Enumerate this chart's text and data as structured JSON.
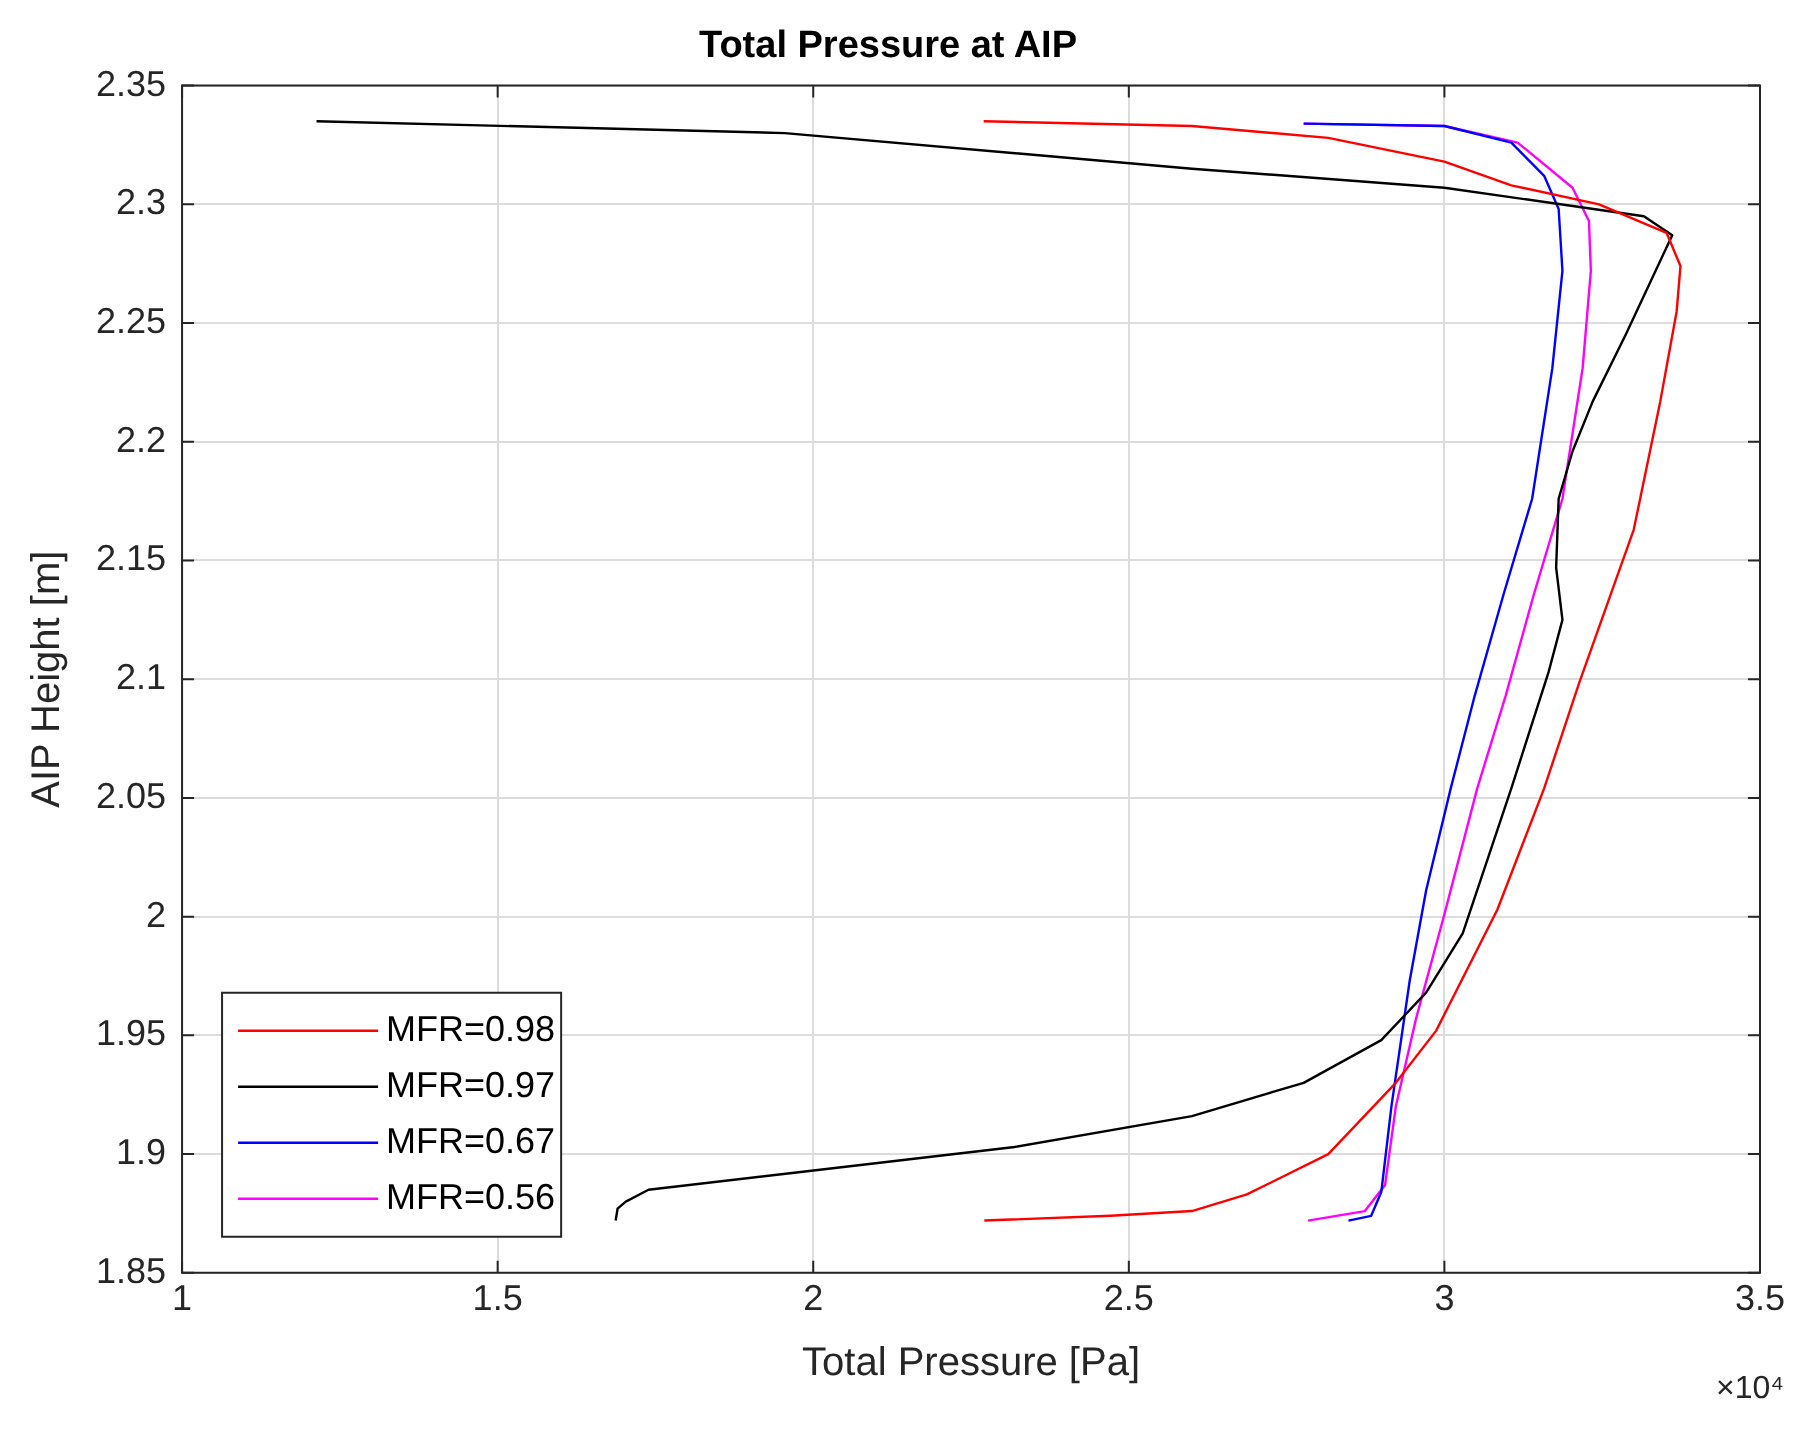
{
  "chart_data": {
    "type": "line",
    "title": "Total Pressure at AIP",
    "xlabel": "Total Pressure [Pa]",
    "ylabel": "AIP Height [m]",
    "annotations": [
      "×10⁴"
    ],
    "xlim": [
      1,
      3.5
    ],
    "xticks": [
      1,
      1.5,
      2,
      2.5,
      3,
      3.5
    ],
    "ylim": [
      1.85,
      2.35
    ],
    "yticks": [
      1.85,
      1.9,
      1.95,
      2,
      2.05,
      2.1,
      2.15,
      2.2,
      2.25,
      2.3,
      2.35
    ],
    "grid": true,
    "legend": "bottom left",
    "line_style": "solid",
    "marker": "none",
    "series": [
      {
        "name": "MFR=0.98",
        "color": "#ff0000",
        "x": [
          2.27,
          2.6,
          2.816,
          3.0,
          3.106,
          3.245,
          3.352,
          3.374,
          3.368,
          3.342,
          3.3,
          3.213,
          3.158,
          3.084,
          2.987,
          2.923,
          2.816,
          2.687,
          2.6,
          2.471,
          2.271
        ],
        "values": [
          2.335,
          2.333,
          2.328,
          2.318,
          2.308,
          2.3,
          2.288,
          2.274,
          2.255,
          2.217,
          2.163,
          2.098,
          2.054,
          2.003,
          1.952,
          1.93,
          1.9,
          1.883,
          1.876,
          1.874,
          1.872
        ]
      },
      {
        "name": "MFR=0.97",
        "color": "#000000",
        "x": [
          1.213,
          1.955,
          2.6,
          3.0,
          3.316,
          3.361,
          3.287,
          3.235,
          3.203,
          3.181,
          3.177,
          3.187,
          3.165,
          3.106,
          3.029,
          2.971,
          2.9,
          2.777,
          2.6,
          2.319,
          1.997,
          1.739,
          1.703,
          1.69,
          1.687
        ],
        "values": [
          2.335,
          2.33,
          2.315,
          2.307,
          2.295,
          2.287,
          2.245,
          2.217,
          2.196,
          2.176,
          2.147,
          2.125,
          2.103,
          2.054,
          1.993,
          1.968,
          1.948,
          1.93,
          1.916,
          1.903,
          1.893,
          1.885,
          1.88,
          1.877,
          1.872
        ]
      },
      {
        "name": "MFR=0.67",
        "color": "#0000ff",
        "x": [
          2.777,
          3.0,
          3.106,
          3.158,
          3.181,
          3.187,
          3.171,
          3.139,
          3.094,
          3.048,
          3.01,
          2.971,
          2.945,
          2.916,
          2.9,
          2.884,
          2.848
        ],
        "values": [
          2.334,
          2.333,
          2.326,
          2.312,
          2.298,
          2.272,
          2.231,
          2.176,
          2.136,
          2.093,
          2.054,
          2.011,
          1.973,
          1.92,
          1.884,
          1.874,
          1.872
        ]
      },
      {
        "name": "MFR=0.56",
        "color": "#ff00ff",
        "x": [
          2.777,
          3.0,
          3.116,
          3.203,
          3.229,
          3.232,
          3.219,
          3.187,
          3.142,
          3.097,
          3.052,
          3.0,
          2.955,
          2.923,
          2.906,
          2.874,
          2.784
        ],
        "values": [
          2.334,
          2.333,
          2.326,
          2.307,
          2.293,
          2.272,
          2.231,
          2.176,
          2.136,
          2.093,
          2.054,
          2.001,
          1.957,
          1.92,
          1.887,
          1.876,
          1.872
        ]
      }
    ]
  }
}
